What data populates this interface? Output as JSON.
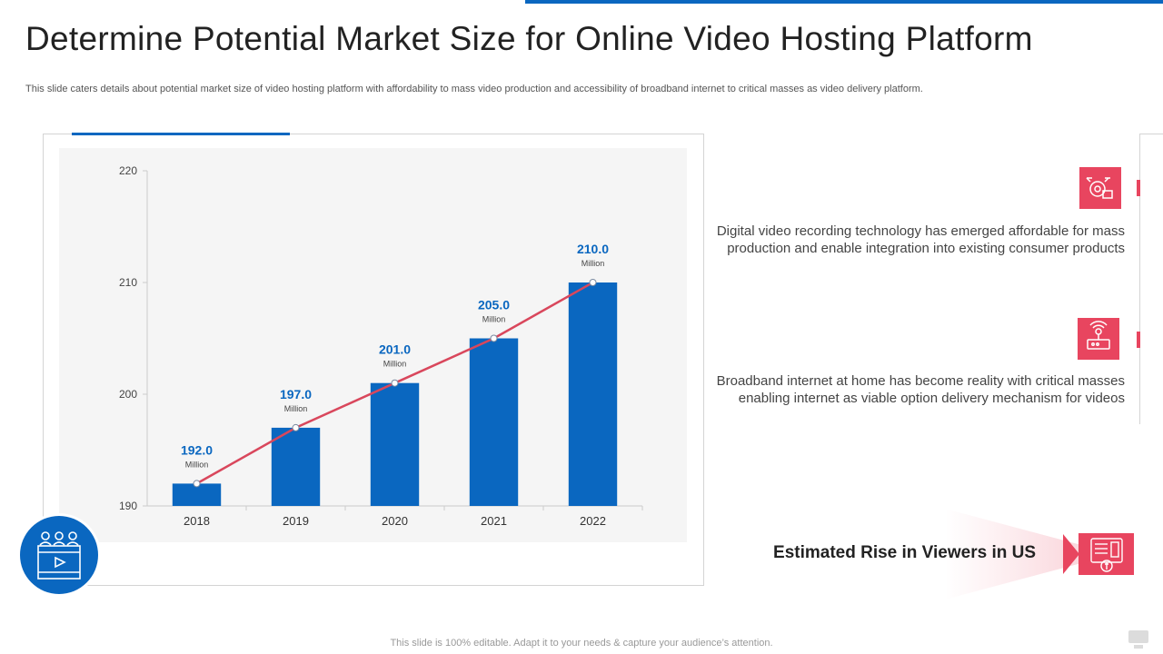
{
  "slide": {
    "title": "Determine Potential Market Size for Online Video Hosting Platform",
    "subtitle": "This slide caters details about potential market size of video hosting platform with affordability to mass video production and accessibility of broadband internet to critical masses as video delivery platform.",
    "footer": "This slide is 100% editable. Adapt it to your needs & capture your audience’s attention."
  },
  "insights": [
    {
      "icon": "camera-drone-icon",
      "text": "Digital video recording technology has emerged affordable for mass production and enable integration into existing consumer products"
    },
    {
      "icon": "broadband-router-icon",
      "text": "Broadband internet at home has become reality with critical masses enabling internet as viable option delivery mechanism for videos"
    }
  ],
  "highlight": {
    "label": "Estimated Rise in Viewers in US",
    "icon": "calculator-dollar-icon"
  },
  "colors": {
    "bar": "#0a67c0",
    "trend_line": "#d9475c",
    "value_label": "#0a67c0",
    "accent_red": "#e8455f"
  },
  "chart_data": {
    "type": "bar",
    "categories": [
      "2018",
      "2019",
      "2020",
      "2021",
      "2022"
    ],
    "series": [
      {
        "values": [
          192.0,
          197.0,
          201.0,
          205.0,
          210.0
        ]
      }
    ],
    "value_labels": [
      "192.0",
      "197.0",
      "201.0",
      "205.0",
      "210.0"
    ],
    "unit_label": "Million",
    "trend_line": true,
    "yticks": [
      "190",
      "200",
      "210",
      "220"
    ],
    "ylim": [
      190,
      220
    ],
    "title": "",
    "xlabel": "",
    "ylabel": "",
    "grid": false,
    "legend": "none"
  }
}
